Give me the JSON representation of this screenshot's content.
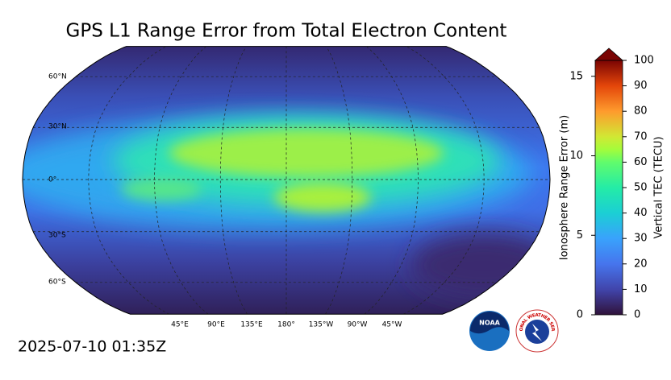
{
  "title": "GPS L1 Range Error from Total Electron Content",
  "timestamp": "2025-07-10 01:35Z",
  "map": {
    "lat_labels": [
      "60°N",
      "30°N",
      "0°",
      "30°S",
      "60°S"
    ],
    "lon_labels": [
      "45°E",
      "90°E",
      "135°E",
      "180°",
      "135°W",
      "90°W",
      "45°W"
    ]
  },
  "colorbar": {
    "left_label": "Ionosphere Range Error (m)",
    "left_lim": [
      0,
      16
    ],
    "left_ticks": [
      0,
      5,
      10,
      15
    ],
    "right_label": "Vertical TEC (TECU)",
    "right_lim": [
      0,
      100
    ],
    "right_ticks": [
      0,
      10,
      20,
      30,
      40,
      50,
      60,
      70,
      80,
      90,
      100
    ]
  },
  "logos": {
    "noaa": "NOAA",
    "nws": "NATIONAL WEATHER SERVICE"
  }
}
